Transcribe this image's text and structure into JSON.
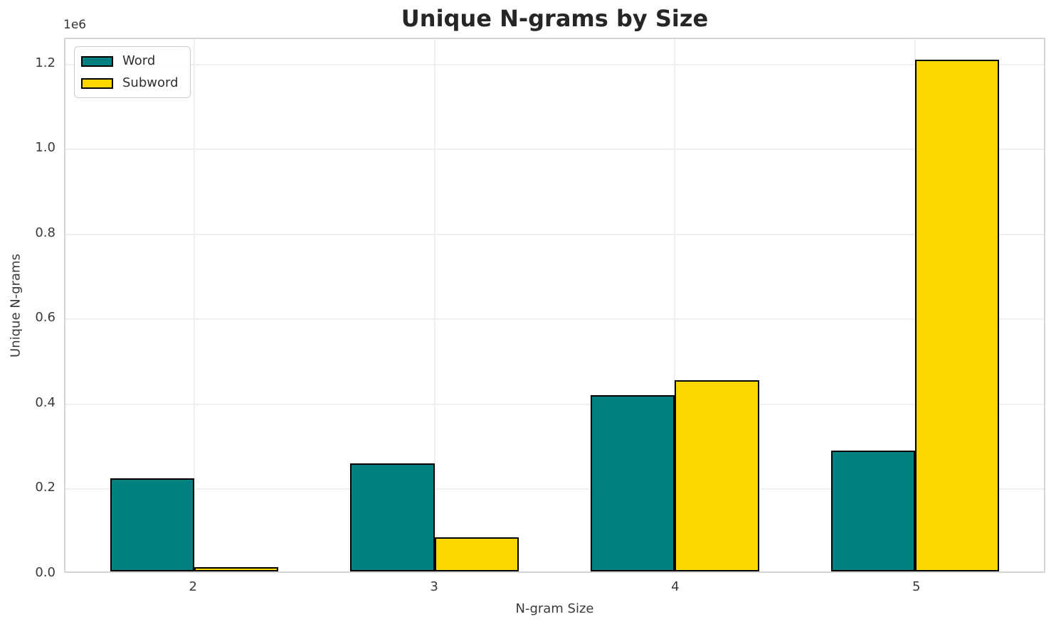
{
  "chart_data": {
    "type": "bar",
    "title": "Unique N-grams by Size",
    "xlabel": "N-gram Size",
    "ylabel": "Unique N-grams",
    "y_offset_label": "1e6",
    "categories": [
      "2",
      "3",
      "4",
      "5"
    ],
    "series": [
      {
        "name": "Word",
        "color": "#008080",
        "values": [
          220000,
          255000,
          415000,
          285000
        ]
      },
      {
        "name": "Subword",
        "color": "#FFD700",
        "values": [
          10000,
          80000,
          450000,
          1205000
        ]
      }
    ],
    "bar_edge_color": "#000000",
    "bar_width": 0.35,
    "xlim": [
      -0.535,
      3.535
    ],
    "ylim": [
      0,
      1260000
    ],
    "ytick_values": [
      0,
      200000,
      400000,
      600000,
      800000,
      1000000,
      1200000
    ],
    "ytick_labels": [
      "0.0",
      "0.2",
      "0.4",
      "0.6",
      "0.8",
      "1.0",
      "1.2"
    ],
    "grid": true,
    "grid_color": "#efefef",
    "legend_position": "upper left"
  }
}
